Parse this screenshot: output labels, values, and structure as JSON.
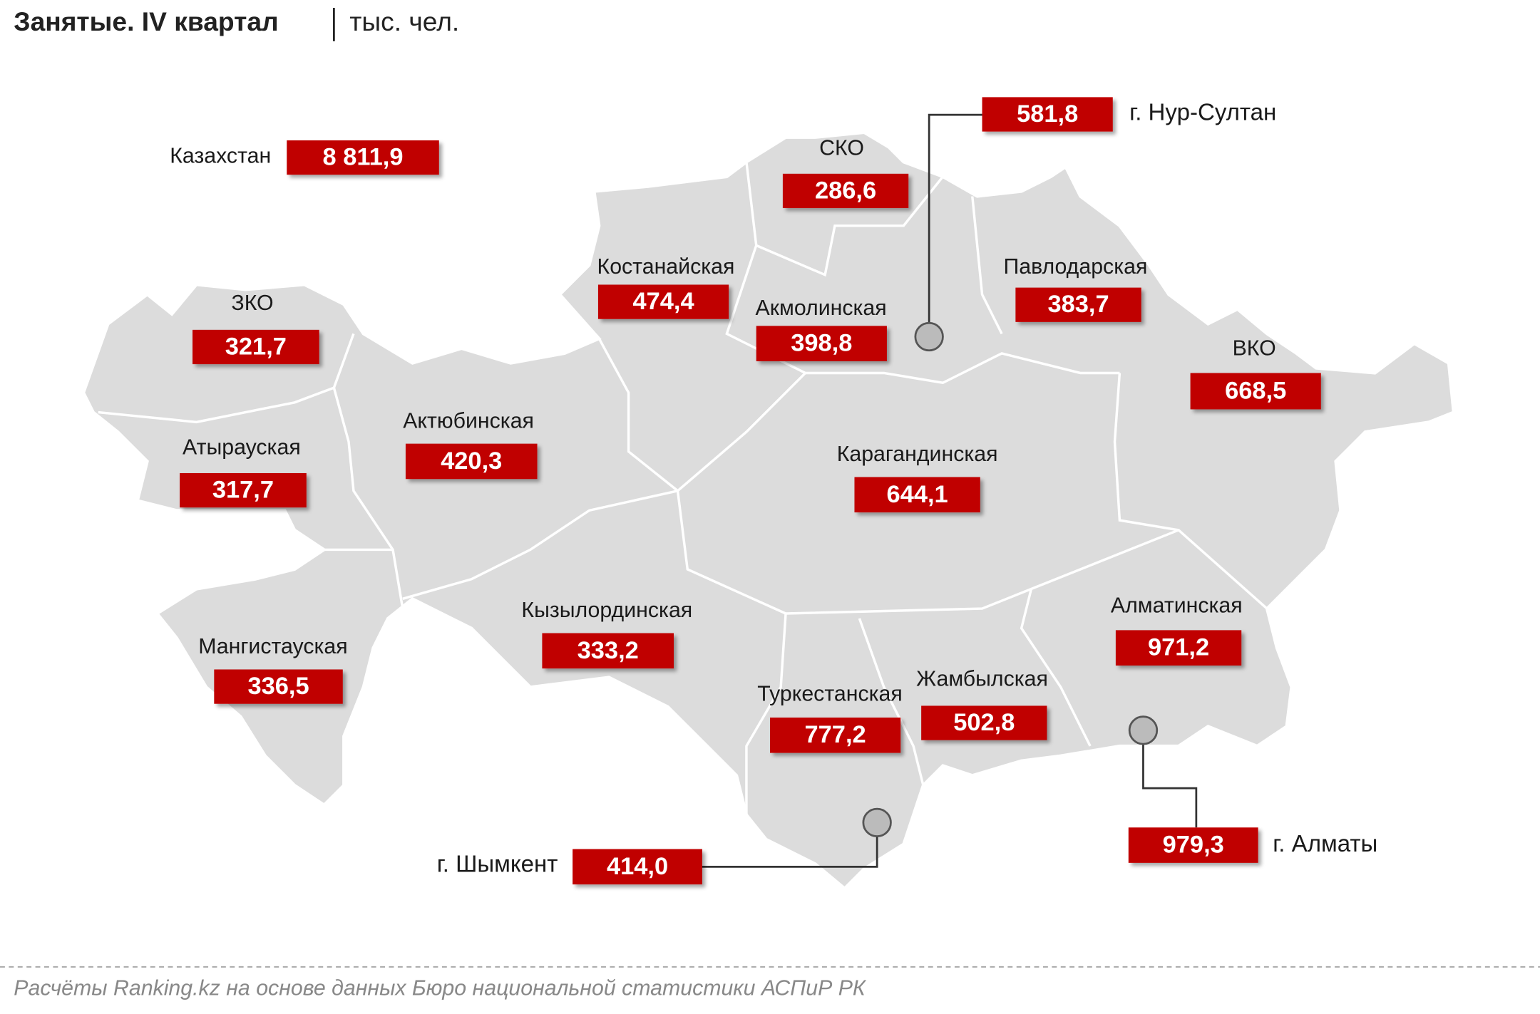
{
  "title": "Занятые. IV квартал",
  "unit": "тыс. чел.",
  "total": {
    "name": "Казахстан",
    "value": "8 811,9"
  },
  "regions": [
    {
      "name": "СКО",
      "value": "286,6"
    },
    {
      "name": "Костанайская",
      "value": "474,4"
    },
    {
      "name": "Акмолинская",
      "value": "398,8"
    },
    {
      "name": "Павлодарская",
      "value": "383,7"
    },
    {
      "name": "ЗКО",
      "value": "321,7"
    },
    {
      "name": "ВКО",
      "value": "668,5"
    },
    {
      "name": "Актюбинская",
      "value": "420,3"
    },
    {
      "name": "Атырауская",
      "value": "317,7"
    },
    {
      "name": "Карагандинская",
      "value": "644,1"
    },
    {
      "name": "Кызылординская",
      "value": "333,2"
    },
    {
      "name": "Алматинская",
      "value": "971,2"
    },
    {
      "name": "Мангистауская",
      "value": "336,5"
    },
    {
      "name": "Туркестанская",
      "value": "777,2"
    },
    {
      "name": "Жамбылская",
      "value": "502,8"
    }
  ],
  "cities": [
    {
      "name": "г. Нур-Султан",
      "value": "581,8"
    },
    {
      "name": "г. Шымкент",
      "value": "414,0"
    },
    {
      "name": "г. Алматы",
      "value": "979,3"
    }
  ],
  "source": "Расчёты Ranking.kz на основе данных Бюро национальной статистики АСПиР РК"
}
